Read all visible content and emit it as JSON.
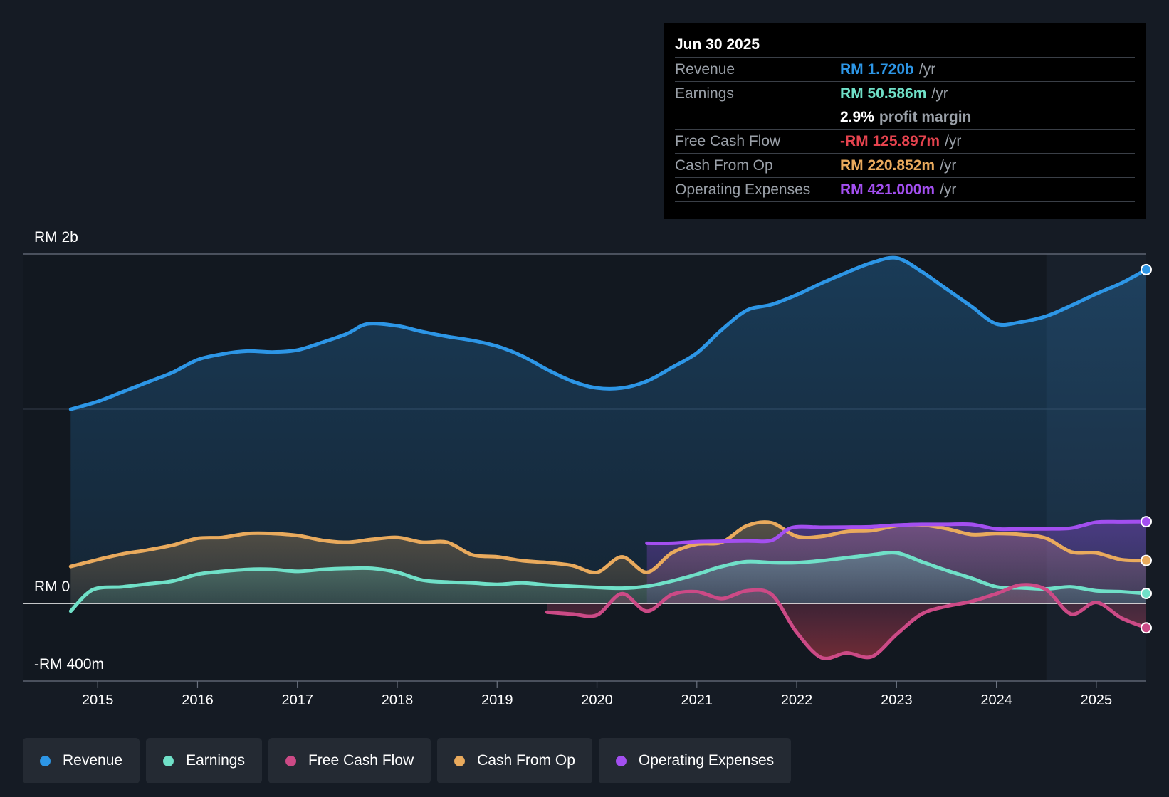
{
  "colors": {
    "background": "#151b24",
    "revenue": "#2d96e6",
    "earnings": "#70e0c8",
    "free_cash_flow": "#cc4a86",
    "cash_from_op": "#e9aa5d",
    "operating_expenses": "#a34ff0",
    "negative": "#e5434e"
  },
  "tooltip": {
    "date": "Jun 30 2025",
    "rows": [
      {
        "name": "Revenue",
        "value": "RM 1.720b",
        "unit": "/yr",
        "color": "#2d96e6"
      },
      {
        "name": "Earnings",
        "value": "RM 50.586m",
        "unit": "/yr",
        "color": "#70e0c8"
      },
      {
        "name": "",
        "value": "2.9%",
        "unit": "profit margin",
        "color": "#ffffff"
      },
      {
        "name": "Free Cash Flow",
        "value": "-RM 125.897m",
        "unit": "/yr",
        "color": "#e5434e"
      },
      {
        "name": "Cash From Op",
        "value": "RM 220.852m",
        "unit": "/yr",
        "color": "#e9aa5d"
      },
      {
        "name": "Operating Expenses",
        "value": "RM 421.000m",
        "unit": "/yr",
        "color": "#a34ff0"
      }
    ]
  },
  "legend": [
    {
      "label": "Revenue",
      "color": "#2d96e6"
    },
    {
      "label": "Earnings",
      "color": "#70e0c8"
    },
    {
      "label": "Free Cash Flow",
      "color": "#cc4a86"
    },
    {
      "label": "Cash From Op",
      "color": "#e9aa5d"
    },
    {
      "label": "Operating Expenses",
      "color": "#a34ff0"
    }
  ],
  "chart_data": {
    "type": "area",
    "title": "",
    "xlabel": "",
    "ylabel": "",
    "y_axis_labels": [
      "RM 2b",
      "RM 0",
      "-RM 400m"
    ],
    "ylim": [
      -400,
      1800
    ],
    "xlim": [
      2014.25,
      2025.5
    ],
    "x_ticks": [
      "2015",
      "2016",
      "2017",
      "2018",
      "2019",
      "2020",
      "2021",
      "2022",
      "2023",
      "2024",
      "2025"
    ],
    "x_tick_values": [
      2015,
      2016,
      2017,
      2018,
      2019,
      2020,
      2021,
      2022,
      2023,
      2024,
      2025
    ],
    "forecast_start": 2024.5,
    "series": [
      {
        "name": "Revenue",
        "key": "revenue",
        "x": [
          2014.73,
          2015.0,
          2015.25,
          2015.5,
          2015.75,
          2016.0,
          2016.25,
          2016.5,
          2016.75,
          2017.0,
          2017.25,
          2017.5,
          2017.7,
          2018.0,
          2018.25,
          2018.5,
          2018.75,
          2019.0,
          2019.25,
          2019.5,
          2019.75,
          2020.0,
          2020.25,
          2020.5,
          2020.75,
          2021.0,
          2021.25,
          2021.5,
          2021.75,
          2022.0,
          2022.25,
          2022.5,
          2022.75,
          2023.0,
          2023.25,
          2023.5,
          2023.75,
          2024.0,
          2024.25,
          2024.5,
          2024.75,
          2025.0,
          2025.25,
          2025.5
        ],
        "values": [
          1000,
          1040,
          1090,
          1140,
          1190,
          1255,
          1285,
          1300,
          1295,
          1305,
          1345,
          1390,
          1440,
          1430,
          1400,
          1375,
          1355,
          1325,
          1275,
          1205,
          1145,
          1110,
          1110,
          1145,
          1215,
          1290,
          1410,
          1510,
          1540,
          1590,
          1650,
          1705,
          1755,
          1780,
          1710,
          1620,
          1530,
          1440,
          1450,
          1480,
          1535,
          1595,
          1650,
          1720
        ]
      },
      {
        "name": "Earnings",
        "key": "earnings",
        "x": [
          2014.73,
          2014.95,
          2015.25,
          2015.5,
          2015.75,
          2016.0,
          2016.25,
          2016.5,
          2016.75,
          2017.0,
          2017.25,
          2017.5,
          2017.75,
          2018.0,
          2018.25,
          2018.5,
          2018.75,
          2019.0,
          2019.25,
          2019.5,
          2019.75,
          2020.0,
          2020.25,
          2020.5,
          2020.75,
          2021.0,
          2021.25,
          2021.5,
          2021.75,
          2022.0,
          2022.25,
          2022.5,
          2022.75,
          2023.0,
          2023.25,
          2023.5,
          2023.75,
          2024.0,
          2024.25,
          2024.5,
          2024.75,
          2025.0,
          2025.25,
          2025.5
        ],
        "values": [
          -40,
          70,
          85,
          100,
          115,
          150,
          165,
          175,
          175,
          165,
          175,
          180,
          180,
          160,
          120,
          110,
          105,
          98,
          105,
          95,
          88,
          82,
          78,
          88,
          115,
          150,
          190,
          215,
          210,
          210,
          220,
          235,
          250,
          260,
          215,
          170,
          130,
          85,
          80,
          75,
          85,
          65,
          60,
          51
        ]
      },
      {
        "name": "Free Cash Flow",
        "key": "free_cash_flow",
        "x": [
          2019.5,
          2019.75,
          2020.0,
          2020.25,
          2020.5,
          2020.75,
          2021.0,
          2021.25,
          2021.5,
          2021.75,
          2022.0,
          2022.25,
          2022.5,
          2022.75,
          2023.0,
          2023.25,
          2023.5,
          2023.75,
          2024.0,
          2024.25,
          2024.5,
          2024.75,
          2025.0,
          2025.25,
          2025.5
        ],
        "values": [
          -45,
          -55,
          -60,
          50,
          -40,
          45,
          60,
          25,
          65,
          45,
          -150,
          -280,
          -255,
          -275,
          -160,
          -55,
          -15,
          10,
          50,
          95,
          70,
          -55,
          5,
          -75,
          -126
        ]
      },
      {
        "name": "Cash From Op",
        "key": "cash_from_op",
        "x": [
          2014.73,
          2015.0,
          2015.25,
          2015.5,
          2015.75,
          2016.0,
          2016.25,
          2016.5,
          2016.75,
          2017.0,
          2017.25,
          2017.5,
          2017.75,
          2018.0,
          2018.25,
          2018.5,
          2018.75,
          2019.0,
          2019.25,
          2019.5,
          2019.75,
          2020.0,
          2020.25,
          2020.5,
          2020.75,
          2021.0,
          2021.25,
          2021.5,
          2021.75,
          2022.0,
          2022.25,
          2022.5,
          2022.75,
          2023.0,
          2023.25,
          2023.5,
          2023.75,
          2024.0,
          2024.25,
          2024.5,
          2024.75,
          2025.0,
          2025.25,
          2025.5
        ],
        "values": [
          190,
          225,
          255,
          275,
          300,
          335,
          340,
          360,
          360,
          350,
          325,
          315,
          330,
          340,
          315,
          315,
          250,
          240,
          220,
          210,
          195,
          160,
          240,
          160,
          260,
          305,
          315,
          400,
          415,
          345,
          345,
          370,
          375,
          400,
          405,
          385,
          355,
          360,
          355,
          335,
          265,
          260,
          225,
          221
        ]
      },
      {
        "name": "Operating Expenses",
        "key": "operating_expenses",
        "x": [
          2020.5,
          2020.75,
          2021.0,
          2021.25,
          2021.5,
          2021.75,
          2021.95,
          2022.25,
          2022.5,
          2022.75,
          2023.0,
          2023.25,
          2023.5,
          2023.75,
          2024.0,
          2024.25,
          2024.5,
          2024.75,
          2025.0,
          2025.25,
          2025.5
        ],
        "values": [
          310,
          310,
          318,
          320,
          322,
          325,
          390,
          392,
          393,
          395,
          403,
          407,
          407,
          407,
          384,
          384,
          384,
          388,
          418,
          420,
          421
        ]
      }
    ]
  }
}
